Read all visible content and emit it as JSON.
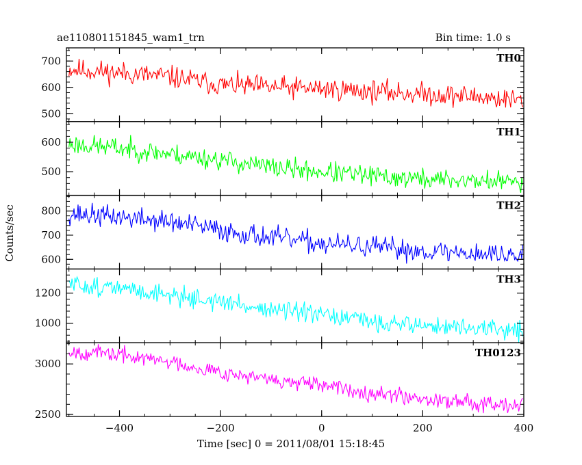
{
  "title_left": "ae110801151845_wam1_trn",
  "title_right": "Bin time: 1.0 s",
  "xlabel": "Time [sec] 0 = 2011/08/01 15:18:45",
  "ylabel": "Counts/sec",
  "chart_data": {
    "type": "line",
    "x_range": [
      -505,
      400
    ],
    "x_ticks": [
      -400,
      -200,
      0,
      200,
      400
    ],
    "x_tick_labels": [
      "−400",
      "−200",
      "0",
      "200",
      "400"
    ],
    "bin_seconds": 1.0,
    "panels": [
      {
        "name": "TH0",
        "color": "#ff0000",
        "ylim": [
          470,
          750
        ],
        "yticks": [
          500,
          600,
          700
        ],
        "ytick_labels": [
          "500",
          "600",
          "700"
        ],
        "trend_x": [
          -505,
          -400,
          -300,
          -200,
          -100,
          0,
          100,
          200,
          300,
          400
        ],
        "trend_y": [
          670,
          655,
          640,
          610,
          600,
          595,
          585,
          575,
          565,
          550
        ],
        "noise_amplitude": 30,
        "seed": 11
      },
      {
        "name": "TH1",
        "color": "#00ff00",
        "ylim": [
          420,
          670
        ],
        "yticks": [
          500,
          600
        ],
        "ytick_labels": [
          "500",
          "600"
        ],
        "trend_x": [
          -505,
          -400,
          -300,
          -200,
          -100,
          0,
          100,
          200,
          300,
          400
        ],
        "trend_y": [
          595,
          580,
          560,
          540,
          515,
          500,
          485,
          475,
          470,
          465
        ],
        "noise_amplitude": 25,
        "seed": 23
      },
      {
        "name": "TH2",
        "color": "#0000ff",
        "ylim": [
          560,
          865
        ],
        "yticks": [
          600,
          700,
          800
        ],
        "ytick_labels": [
          "600",
          "700",
          "800"
        ],
        "trend_x": [
          -505,
          -400,
          -300,
          -200,
          -100,
          0,
          100,
          200,
          300,
          400
        ],
        "trend_y": [
          790,
          775,
          755,
          720,
          690,
          665,
          650,
          635,
          625,
          615
        ],
        "noise_amplitude": 32,
        "seed": 37
      },
      {
        "name": "TH3",
        "color": "#00ffff",
        "ylim": [
          870,
          1360
        ],
        "yticks": [
          1000,
          1200
        ],
        "ytick_labels": [
          "1000",
          "1200"
        ],
        "trend_x": [
          -505,
          -400,
          -300,
          -200,
          -100,
          0,
          100,
          200,
          300,
          400
        ],
        "trend_y": [
          1260,
          1230,
          1190,
          1140,
          1090,
          1050,
          1010,
          985,
          965,
          950
        ],
        "noise_amplitude": 45,
        "seed": 51
      },
      {
        "name": "TH0123",
        "color": "#ff00ff",
        "ylim": [
          2480,
          3210
        ],
        "yticks": [
          2500,
          3000
        ],
        "ytick_labels": [
          "2500",
          "3000"
        ],
        "trend_x": [
          -505,
          -400,
          -300,
          -200,
          -100,
          0,
          100,
          200,
          300,
          400
        ],
        "trend_y": [
          3130,
          3090,
          3020,
          2920,
          2840,
          2780,
          2720,
          2660,
          2620,
          2600
        ],
        "noise_amplitude": 55,
        "seed": 67
      }
    ]
  }
}
